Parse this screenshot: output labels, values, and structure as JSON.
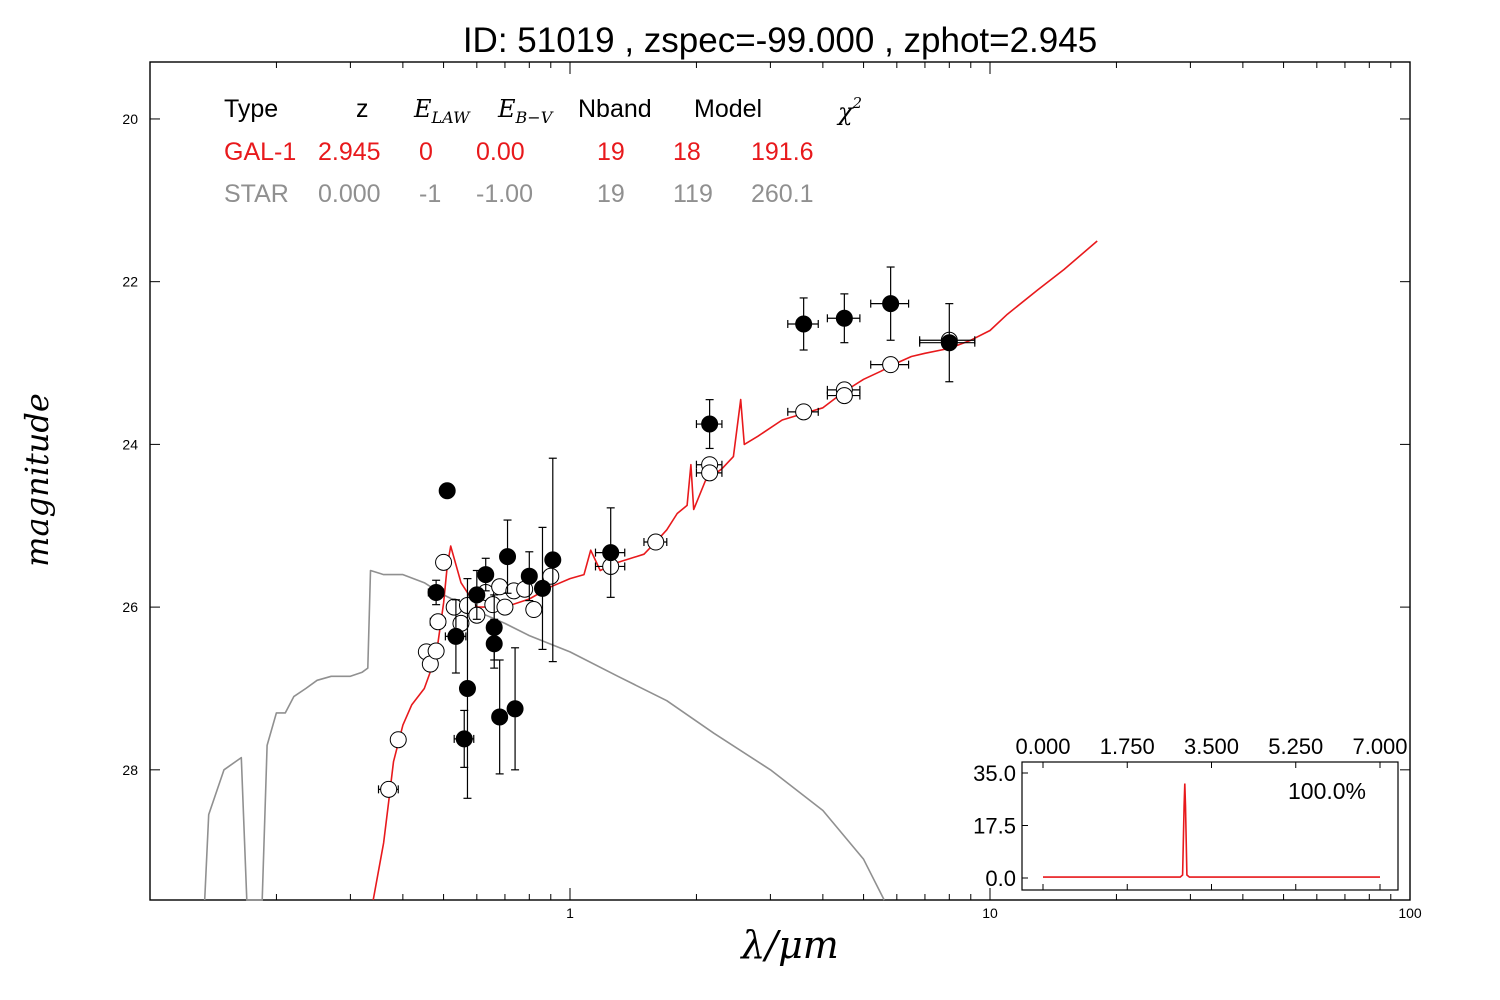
{
  "title": "ID:  51019 , zspec=-99.000 , zphot=2.945",
  "colors": {
    "gal": "#e8191c",
    "star": "#909090",
    "axis": "#000000"
  },
  "table": {
    "header": [
      "Type",
      "z",
      "E_LAW",
      "E_B-V",
      "Nband",
      "Model",
      "χ²"
    ],
    "rows": [
      {
        "name": "gal",
        "cells": [
          "GAL-1",
          "2.945",
          "0",
          "0.00",
          "19",
          "18",
          "191.6"
        ]
      },
      {
        "name": "star",
        "cells": [
          "STAR",
          "0.000",
          "-1",
          "-1.00",
          "19",
          "119",
          "260.1"
        ]
      }
    ]
  },
  "chart_data": [
    {
      "type": "scatter",
      "xlabel": "λ/μm",
      "ylabel": "magnitude",
      "xscale": "log",
      "xlim": [
        0.1,
        100
      ],
      "ylim": [
        29.6,
        19.3
      ],
      "xticks": [
        "1",
        "10",
        "100"
      ],
      "yticks": [
        "20",
        "22",
        "24",
        "26",
        "28"
      ],
      "series": [
        {
          "kind": "model-line",
          "role": "gal",
          "points": [
            [
              0.34,
              29.6
            ],
            [
              0.36,
              28.9
            ],
            [
              0.37,
              28.4
            ],
            [
              0.38,
              27.9
            ],
            [
              0.4,
              27.45
            ],
            [
              0.42,
              27.2
            ],
            [
              0.45,
              27.0
            ],
            [
              0.48,
              26.6
            ],
            [
              0.5,
              25.95
            ],
            [
              0.51,
              25.5
            ],
            [
              0.52,
              25.25
            ],
            [
              0.55,
              25.7
            ],
            [
              0.6,
              26.0
            ],
            [
              0.7,
              26.0
            ],
            [
              0.8,
              25.9
            ],
            [
              0.9,
              25.75
            ],
            [
              1.0,
              25.65
            ],
            [
              1.08,
              25.6
            ],
            [
              1.12,
              25.3
            ],
            [
              1.18,
              25.55
            ],
            [
              1.3,
              25.45
            ],
            [
              1.5,
              25.35
            ],
            [
              1.6,
              25.2
            ],
            [
              1.7,
              25.05
            ],
            [
              1.8,
              24.85
            ],
            [
              1.9,
              24.75
            ],
            [
              1.94,
              24.25
            ],
            [
              1.97,
              24.8
            ],
            [
              2.1,
              24.45
            ],
            [
              2.3,
              24.3
            ],
            [
              2.45,
              24.15
            ],
            [
              2.55,
              23.45
            ],
            [
              2.6,
              24.0
            ],
            [
              2.8,
              23.9
            ],
            [
              3.2,
              23.7
            ],
            [
              3.6,
              23.62
            ],
            [
              4.0,
              23.55
            ],
            [
              4.5,
              23.35
            ],
            [
              5.0,
              23.2
            ],
            [
              5.5,
              23.1
            ],
            [
              6.0,
              23.0
            ],
            [
              6.5,
              22.92
            ],
            [
              7.0,
              22.88
            ],
            [
              8.0,
              22.82
            ],
            [
              9.0,
              22.72
            ],
            [
              10.0,
              22.6
            ],
            [
              11.0,
              22.4
            ],
            [
              13.0,
              22.1
            ],
            [
              15.0,
              21.85
            ],
            [
              18.0,
              21.5
            ]
          ]
        },
        {
          "kind": "model-line",
          "role": "star",
          "points": [
            [
              0.135,
              29.6
            ],
            [
              0.138,
              28.55
            ],
            [
              0.15,
              28.0
            ],
            [
              0.165,
              27.85
            ],
            [
              0.17,
              29.6
            ],
            [
              0.185,
              29.6
            ],
            [
              0.19,
              27.7
            ],
            [
              0.2,
              27.3
            ],
            [
              0.21,
              27.3
            ],
            [
              0.22,
              27.1
            ],
            [
              0.235,
              27.0
            ],
            [
              0.25,
              26.9
            ],
            [
              0.27,
              26.85
            ],
            [
              0.3,
              26.85
            ],
            [
              0.32,
              26.8
            ],
            [
              0.33,
              26.75
            ],
            [
              0.335,
              25.55
            ],
            [
              0.36,
              25.6
            ],
            [
              0.4,
              25.6
            ],
            [
              0.45,
              25.7
            ],
            [
              0.5,
              25.85
            ],
            [
              0.6,
              26.05
            ],
            [
              0.7,
              26.2
            ],
            [
              0.8,
              26.35
            ],
            [
              1.0,
              26.55
            ],
            [
              1.3,
              26.85
            ],
            [
              1.7,
              27.15
            ],
            [
              2.2,
              27.55
            ],
            [
              3.0,
              28.0
            ],
            [
              4.0,
              28.5
            ],
            [
              5.0,
              29.1
            ],
            [
              5.6,
              29.6
            ]
          ]
        },
        {
          "kind": "photometry",
          "marker": "filled",
          "points": [
            {
              "x": 0.51,
              "y": 24.57,
              "yerr": 0.0,
              "xerr": 0.0
            },
            {
              "x": 0.48,
              "y": 25.82,
              "yerr": 0.15,
              "xerr": 0.02
            },
            {
              "x": 0.535,
              "y": 26.36,
              "yerr": 0.45,
              "xerr": 0.03
            },
            {
              "x": 0.56,
              "y": 27.62,
              "yerr": 0.35,
              "xerr": 0.03
            },
            {
              "x": 0.57,
              "y": 27.0,
              "yerr": 1.35,
              "xerr": 0.02
            },
            {
              "x": 0.6,
              "y": 25.85,
              "yerr": 0.3,
              "xerr": 0.02
            },
            {
              "x": 0.63,
              "y": 25.6,
              "yerr": 0.2,
              "xerr": 0.02
            },
            {
              "x": 0.66,
              "y": 26.25,
              "yerr": 0.4,
              "xerr": 0.02
            },
            {
              "x": 0.66,
              "y": 26.45,
              "yerr": 0.3,
              "xerr": 0.02
            },
            {
              "x": 0.68,
              "y": 27.35,
              "yerr": 0.7,
              "xerr": 0.02
            },
            {
              "x": 0.71,
              "y": 25.38,
              "yerr": 0.45,
              "xerr": 0.02
            },
            {
              "x": 0.74,
              "y": 27.25,
              "yerr": 0.75,
              "xerr": 0.02
            },
            {
              "x": 0.8,
              "y": 25.62,
              "yerr": 0.3,
              "xerr": 0.03
            },
            {
              "x": 0.86,
              "y": 25.77,
              "yerr": 0.75,
              "xerr": 0.03
            },
            {
              "x": 0.91,
              "y": 25.42,
              "yerr": 1.25,
              "xerr": 0.03
            },
            {
              "x": 1.25,
              "y": 25.33,
              "yerr": 0.55,
              "xerr": 0.1
            },
            {
              "x": 2.15,
              "y": 23.75,
              "yerr": 0.3,
              "xerr": 0.15
            },
            {
              "x": 3.6,
              "y": 22.52,
              "yerr": 0.32,
              "xerr": 0.3
            },
            {
              "x": 4.5,
              "y": 22.45,
              "yerr": 0.3,
              "xerr": 0.4
            },
            {
              "x": 5.8,
              "y": 22.27,
              "yerr": 0.45,
              "xerr": 0.6
            },
            {
              "x": 8.0,
              "y": 22.75,
              "yerr": 0.48,
              "xerr": 1.2
            }
          ]
        },
        {
          "kind": "photometry",
          "marker": "open",
          "points": [
            {
              "x": 0.37,
              "y": 28.24,
              "xerr": 0.02
            },
            {
              "x": 0.39,
              "y": 27.63,
              "xerr": 0.0
            },
            {
              "x": 0.455,
              "y": 26.55,
              "xerr": 0.015
            },
            {
              "x": 0.465,
              "y": 26.7,
              "xerr": 0.015
            },
            {
              "x": 0.48,
              "y": 26.54,
              "xerr": 0.015
            },
            {
              "x": 0.485,
              "y": 26.18,
              "xerr": 0.02
            },
            {
              "x": 0.5,
              "y": 25.45,
              "xerr": 0.0
            },
            {
              "x": 0.53,
              "y": 26.0,
              "xerr": 0.02
            },
            {
              "x": 0.55,
              "y": 26.2,
              "xerr": 0.02
            },
            {
              "x": 0.57,
              "y": 25.98,
              "xerr": 0.02
            },
            {
              "x": 0.6,
              "y": 26.1,
              "xerr": 0.02
            },
            {
              "x": 0.63,
              "y": 25.82,
              "xerr": 0.02
            },
            {
              "x": 0.655,
              "y": 25.97,
              "xerr": 0.02
            },
            {
              "x": 0.68,
              "y": 25.75,
              "xerr": 0.02
            },
            {
              "x": 0.7,
              "y": 26.0,
              "xerr": 0.02
            },
            {
              "x": 0.735,
              "y": 25.8,
              "xerr": 0.02
            },
            {
              "x": 0.78,
              "y": 25.78,
              "xerr": 0.02
            },
            {
              "x": 0.82,
              "y": 26.03,
              "xerr": 0.02
            },
            {
              "x": 0.9,
              "y": 25.62,
              "xerr": 0.03
            },
            {
              "x": 1.25,
              "y": 25.5,
              "xerr": 0.1
            },
            {
              "x": 1.6,
              "y": 25.2,
              "xerr": 0.1
            },
            {
              "x": 2.15,
              "y": 24.25,
              "xerr": 0.15
            },
            {
              "x": 2.15,
              "y": 24.35,
              "xerr": 0.15
            },
            {
              "x": 3.6,
              "y": 23.6,
              "xerr": 0.3
            },
            {
              "x": 4.5,
              "y": 23.33,
              "xerr": 0.4
            },
            {
              "x": 4.5,
              "y": 23.4,
              "xerr": 0.4
            },
            {
              "x": 5.8,
              "y": 23.02,
              "xerr": 0.6
            },
            {
              "x": 8.0,
              "y": 22.72,
              "xerr": 1.2
            }
          ]
        }
      ]
    },
    {
      "type": "line",
      "xlim": [
        0.0,
        7.0
      ],
      "ylim": [
        0.0,
        35.0
      ],
      "xticks": [
        "0.000",
        "1.750",
        "3.500",
        "5.250",
        "7.000"
      ],
      "yticks": [
        "35.0",
        "17.5",
        "0.0"
      ],
      "annotation": "100.0%",
      "series": [
        {
          "role": "gal",
          "points": [
            [
              0.0,
              0.3
            ],
            [
              2.85,
              0.3
            ],
            [
              2.9,
              1.0
            ],
            [
              2.93,
              24
            ],
            [
              2.945,
              31.5
            ],
            [
              2.96,
              24
            ],
            [
              2.99,
              1.0
            ],
            [
              3.04,
              0.3
            ],
            [
              7.0,
              0.3
            ]
          ]
        }
      ]
    }
  ]
}
